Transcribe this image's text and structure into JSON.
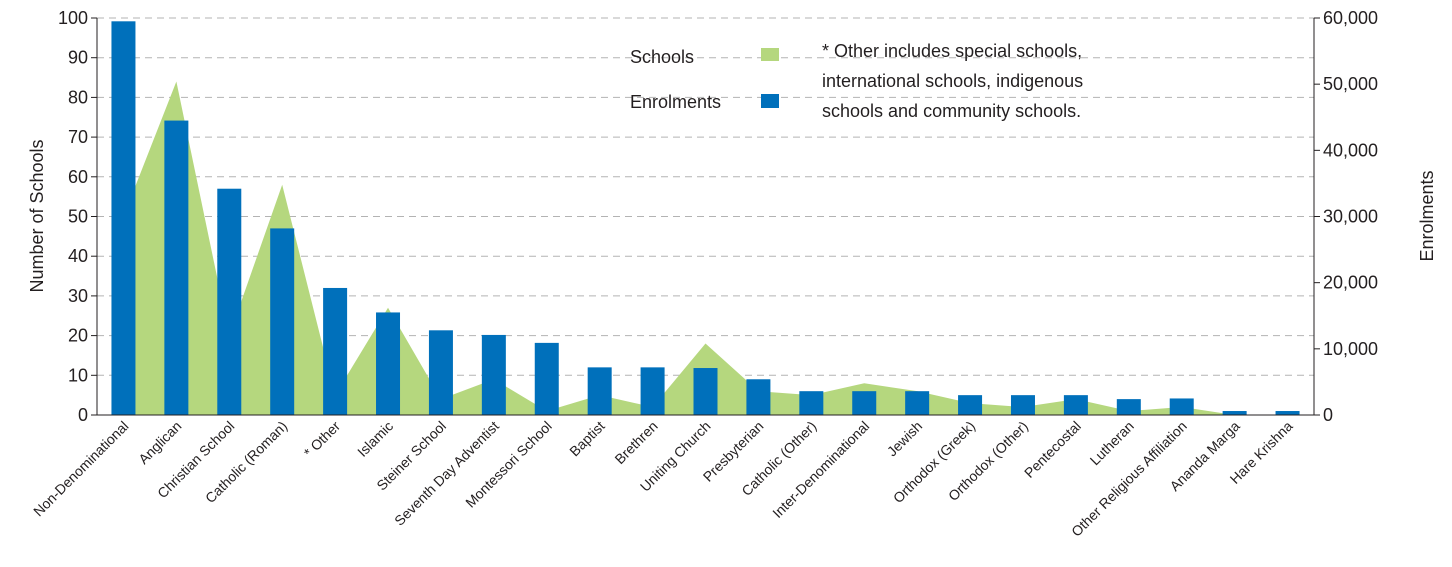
{
  "chart_data": {
    "type": "bar",
    "categories": [
      "Non-Denominational",
      "Anglican",
      "Christian School",
      "Catholic (Roman)",
      "* Other",
      "Islamic",
      "Steiner School",
      "Seventh Day Adventist",
      "Montessori School",
      "Baptist",
      "Brethren",
      "Uniting Church",
      "Presbyterian",
      "Catholic (Other)",
      "Inter-Denominational",
      "Jewish",
      "Orthodox (Greek)",
      "Orthodox (Other)",
      "Pentecostal",
      "Lutheran",
      "Other Religious Affiliation",
      "Ananda Marga",
      "Hare Krishna"
    ],
    "series": [
      {
        "name": "Schools",
        "type": "area",
        "axis": "left",
        "color": "#b5d77e",
        "values": [
          50,
          84,
          20,
          58,
          5,
          27,
          4,
          9,
          1,
          5,
          2,
          18,
          6,
          5,
          8,
          6,
          3,
          2,
          4,
          1,
          2,
          0,
          0
        ]
      },
      {
        "name": "Enrolments",
        "type": "bar",
        "axis": "right",
        "color": "#0070bb",
        "values": [
          59500,
          44500,
          34200,
          28200,
          19200,
          15500,
          12800,
          12100,
          10900,
          7200,
          7200,
          7100,
          5400,
          3600,
          3600,
          3600,
          3000,
          3000,
          3000,
          2400,
          2500,
          600,
          600
        ]
      }
    ],
    "y_left": {
      "label": "Number of Schools",
      "ylim": [
        0,
        100
      ],
      "ticks": [
        "0",
        "10",
        "20",
        "30",
        "40",
        "50",
        "60",
        "70",
        "80",
        "90",
        "100"
      ]
    },
    "y_right": {
      "label": "Enrolments",
      "ylim": [
        0,
        60000
      ],
      "ticks": [
        "0",
        "10,000",
        "20,000",
        "30,000",
        "40,000",
        "50,000",
        "60,000"
      ]
    },
    "grid": true,
    "legend": {
      "placement": "top-center",
      "items": [
        "Schools",
        "Enrolments"
      ]
    },
    "annotation": [
      "* Other includes special schools,",
      "international schools, indigenous",
      "schools and community schools."
    ]
  }
}
